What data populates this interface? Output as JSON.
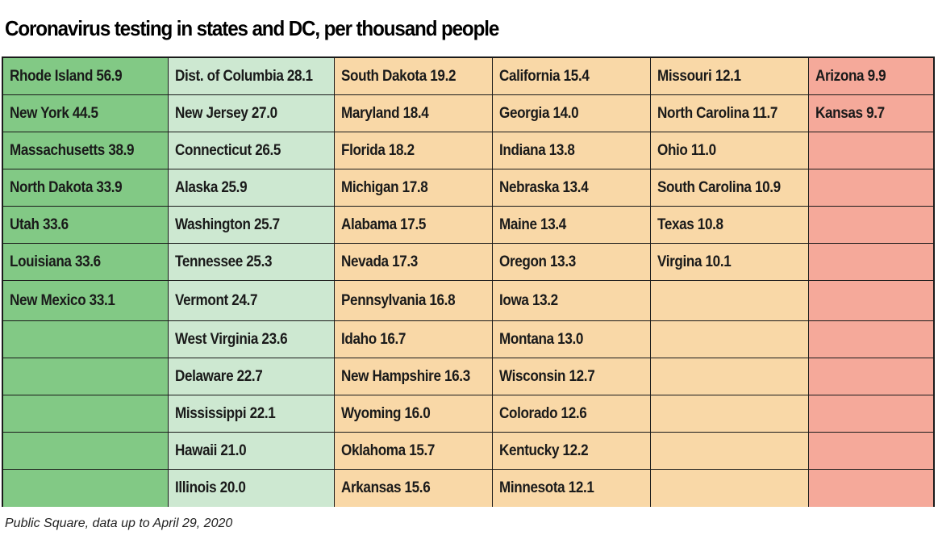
{
  "title": "Coronavirus testing in states and DC, per thousand people",
  "source": "Public Square, data up to April 29, 2020",
  "colors": {
    "dark_green": "#82c985",
    "light_green": "#cde8d1",
    "orange": "#f9d8a7",
    "red": "#f5a99a"
  },
  "chart_data": {
    "type": "table",
    "title": "Coronavirus testing in states and DC, per thousand people",
    "columns": [
      {
        "color": "dark_green",
        "rows": [
          {
            "state": "Rhode Island",
            "value": 56.9,
            "label": "Rhode Island 56.9"
          },
          {
            "state": "New York",
            "value": 44.5,
            "label": "New York 44.5"
          },
          {
            "state": "Massachusetts",
            "value": 38.9,
            "label": "Massachusetts 38.9"
          },
          {
            "state": "North Dakota",
            "value": 33.9,
            "label": "North Dakota 33.9"
          },
          {
            "state": "Utah",
            "value": 33.6,
            "label": "Utah 33.6"
          },
          {
            "state": "Louisiana",
            "value": 33.6,
            "label": "Louisiana 33.6"
          },
          {
            "state": "New Mexico",
            "value": 33.1,
            "label": "New Mexico 33.1"
          }
        ]
      },
      {
        "color": "light_green",
        "rows": [
          {
            "state": "Dist. of Columbia",
            "value": 28.1,
            "label": "Dist. of Columbia 28.1"
          },
          {
            "state": "New Jersey",
            "value": 27.0,
            "label": "New Jersey 27.0"
          },
          {
            "state": "Connecticut",
            "value": 26.5,
            "label": "Connecticut 26.5"
          },
          {
            "state": "Alaska",
            "value": 25.9,
            "label": "Alaska 25.9"
          },
          {
            "state": "Washington",
            "value": 25.7,
            "label": "Washington 25.7"
          },
          {
            "state": "Tennessee",
            "value": 25.3,
            "label": "Tennessee 25.3"
          },
          {
            "state": "Vermont",
            "value": 24.7,
            "label": "Vermont 24.7"
          },
          {
            "state": "West Virginia",
            "value": 23.6,
            "label": "West Virginia 23.6"
          },
          {
            "state": "Delaware",
            "value": 22.7,
            "label": "Delaware 22.7"
          },
          {
            "state": "Mississippi",
            "value": 22.1,
            "label": "Mississippi 22.1"
          },
          {
            "state": "Hawaii",
            "value": 21.0,
            "label": "Hawaii 21.0"
          },
          {
            "state": "Illinois",
            "value": 20.0,
            "label": "Illinois 20.0"
          }
        ]
      },
      {
        "color": "orange",
        "rows": [
          {
            "state": "South Dakota",
            "value": 19.2,
            "label": "South Dakota 19.2"
          },
          {
            "state": "Maryland",
            "value": 18.4,
            "label": "Maryland 18.4"
          },
          {
            "state": "Florida",
            "value": 18.2,
            "label": "Florida 18.2"
          },
          {
            "state": "Michigan",
            "value": 17.8,
            "label": "Michigan 17.8"
          },
          {
            "state": "Alabama",
            "value": 17.5,
            "label": "Alabama 17.5"
          },
          {
            "state": "Nevada",
            "value": 17.3,
            "label": "Nevada 17.3"
          },
          {
            "state": "Pennsylvania",
            "value": 16.8,
            "label": "Pennsylvania 16.8"
          },
          {
            "state": "Idaho",
            "value": 16.7,
            "label": "Idaho 16.7"
          },
          {
            "state": "New Hampshire",
            "value": 16.3,
            "label": "New Hampshire 16.3"
          },
          {
            "state": "Wyoming",
            "value": 16.0,
            "label": "Wyoming 16.0"
          },
          {
            "state": "Oklahoma",
            "value": 15.7,
            "label": "Oklahoma 15.7"
          },
          {
            "state": "Arkansas",
            "value": 15.6,
            "label": "Arkansas 15.6"
          }
        ]
      },
      {
        "color": "orange",
        "rows": [
          {
            "state": "California",
            "value": 15.4,
            "label": "California 15.4"
          },
          {
            "state": "Georgia",
            "value": 14.0,
            "label": "Georgia 14.0"
          },
          {
            "state": "Indiana",
            "value": 13.8,
            "label": "Indiana 13.8"
          },
          {
            "state": "Nebraska",
            "value": 13.4,
            "label": "Nebraska 13.4"
          },
          {
            "state": "Maine",
            "value": 13.4,
            "label": "Maine 13.4"
          },
          {
            "state": "Oregon",
            "value": 13.3,
            "label": "Oregon 13.3"
          },
          {
            "state": "Iowa",
            "value": 13.2,
            "label": "Iowa 13.2"
          },
          {
            "state": "Montana",
            "value": 13.0,
            "label": "Montana 13.0"
          },
          {
            "state": "Wisconsin",
            "value": 12.7,
            "label": "Wisconsin 12.7"
          },
          {
            "state": "Colorado",
            "value": 12.6,
            "label": "Colorado 12.6"
          },
          {
            "state": "Kentucky",
            "value": 12.2,
            "label": "Kentucky 12.2"
          },
          {
            "state": "Minnesota",
            "value": 12.1,
            "label": "Minnesota 12.1"
          }
        ]
      },
      {
        "color": "orange",
        "rows": [
          {
            "state": "Missouri",
            "value": 12.1,
            "label": "Missouri 12.1"
          },
          {
            "state": "North Carolina",
            "value": 11.7,
            "label": "North Carolina 11.7"
          },
          {
            "state": "Ohio",
            "value": 11.0,
            "label": "Ohio 11.0"
          },
          {
            "state": "South Carolina",
            "value": 10.9,
            "label": "South Carolina 10.9"
          },
          {
            "state": "Texas",
            "value": 10.8,
            "label": "Texas 10.8"
          },
          {
            "state": "Virgina",
            "value": 10.1,
            "label": "Virgina 10.1"
          }
        ]
      },
      {
        "color": "red",
        "rows": [
          {
            "state": "Arizona",
            "value": 9.9,
            "label": "Arizona 9.9"
          },
          {
            "state": "Kansas",
            "value": 9.7,
            "label": "Kansas 9.7"
          }
        ]
      }
    ]
  }
}
